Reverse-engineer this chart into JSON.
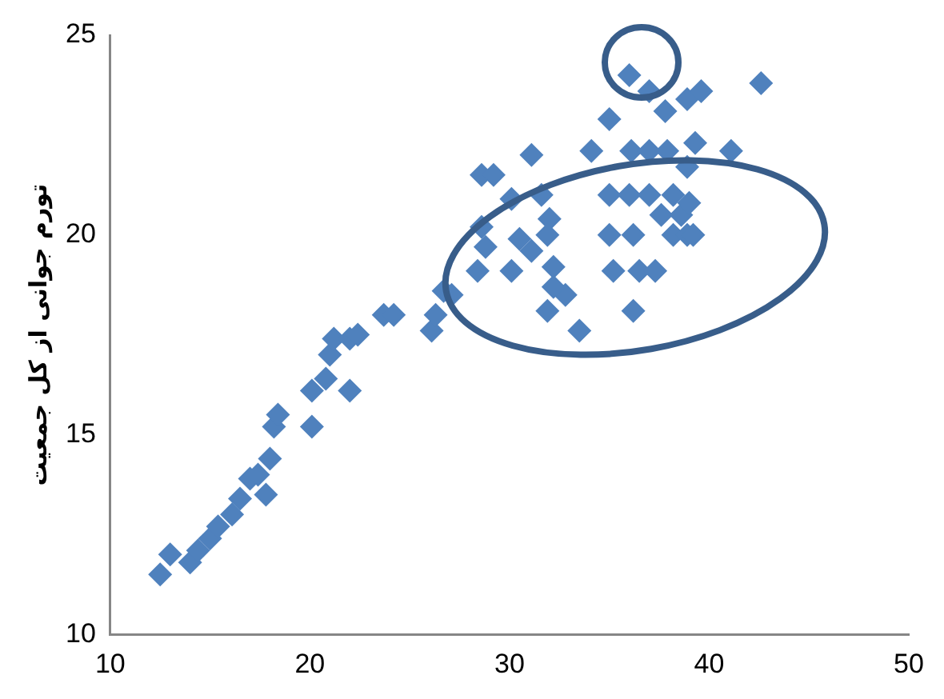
{
  "chart_data": {
    "type": "scatter",
    "ylabel": "تورم جوانی از کل جمعیت",
    "xlim": [
      10,
      50
    ],
    "xticks": [
      10,
      20,
      30,
      40,
      50
    ],
    "ylim": [
      10,
      25
    ],
    "yticks": [
      10,
      15,
      20,
      25
    ],
    "grid": false,
    "legend": false,
    "marker": "diamond",
    "series": [
      {
        "color": "#4f81bd",
        "x": [
          12.5,
          13,
          14,
          14.4,
          15,
          15.4,
          16.1,
          16.5,
          17,
          17.4,
          17.8,
          18,
          18.2,
          18.4,
          20.1,
          20.1,
          20.8,
          21,
          21.2,
          22,
          22,
          22.4,
          23.7,
          24.2,
          26.1,
          26.3,
          26.7,
          27.1,
          28.4,
          28.8,
          28.6,
          28.6,
          29.2,
          30.1,
          30.5,
          30.1,
          31.1,
          31.1,
          31.6,
          32,
          31.9,
          32.2,
          31.9,
          32.8,
          32.2,
          33.5,
          34.1,
          35,
          35,
          35.2,
          35,
          36,
          36.1,
          36,
          36.2,
          36.2,
          36.5,
          37,
          37,
          37,
          37.3,
          37.6,
          37.9,
          38.2,
          38.2,
          38.6,
          38.9,
          38.9,
          38.9,
          39.2,
          39.6,
          41.1,
          42.6,
          39.3,
          39,
          37.8
        ],
        "values": [
          11.5,
          12,
          11.8,
          12.1,
          12.4,
          12.7,
          13,
          13.4,
          13.9,
          14,
          13.5,
          14.4,
          15.2,
          15.5,
          15.2,
          16.1,
          16.4,
          17,
          17.4,
          16.1,
          17.4,
          17.5,
          18,
          18,
          17.6,
          18,
          18.6,
          18.5,
          19.1,
          19.7,
          20.2,
          21.5,
          21.5,
          20.9,
          19.9,
          19.1,
          19.6,
          22,
          21,
          20.4,
          20,
          19.2,
          18.1,
          18.5,
          18.7,
          17.6,
          22.1,
          21,
          20,
          19.1,
          22.9,
          24,
          22.1,
          21,
          20,
          18.1,
          19.1,
          22.1,
          21,
          23.6,
          19.1,
          20.5,
          22.1,
          21,
          20,
          20.5,
          20,
          21.7,
          23.4,
          20,
          23.6,
          22.1,
          23.8,
          22.3,
          20.8,
          23.1
        ]
      }
    ]
  }
}
